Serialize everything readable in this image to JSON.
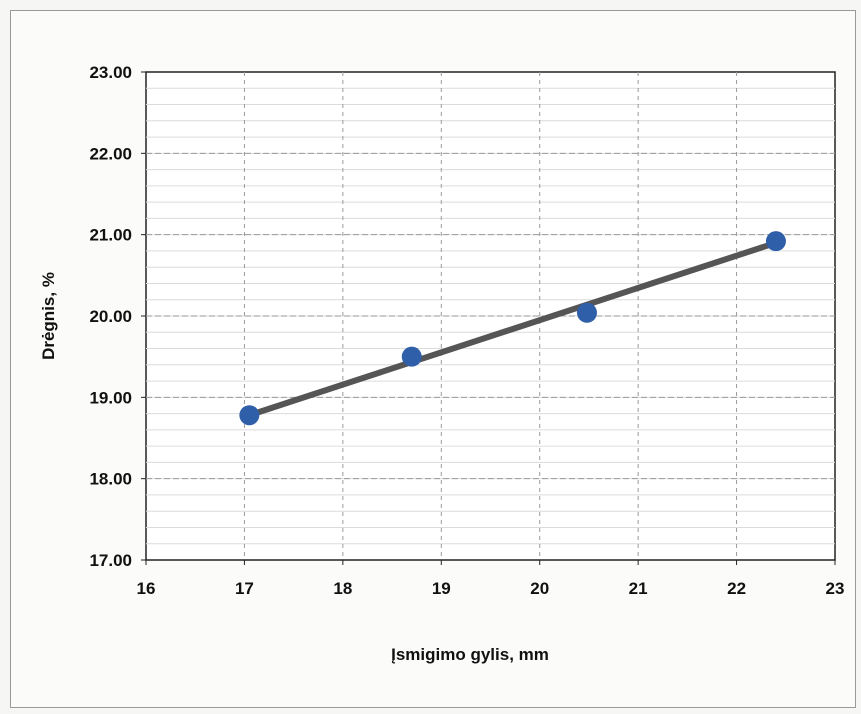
{
  "chart_data": {
    "type": "scatter",
    "title": "",
    "xlabel": "Įsmigimo gylis, mm",
    "ylabel": "Drėgnis, %",
    "xlim": [
      16,
      23
    ],
    "ylim": [
      17.0,
      23.0
    ],
    "x_ticks": [
      "16",
      "17",
      "18",
      "19",
      "20",
      "21",
      "22",
      "23"
    ],
    "y_ticks": [
      "17.00",
      "18.00",
      "19.00",
      "20.00",
      "21.00",
      "22.00",
      "23.00"
    ],
    "grid": true,
    "legend": "none",
    "series": [
      {
        "points": [
          {
            "x": 17.05,
            "y": 18.78
          },
          {
            "x": 18.7,
            "y": 19.5
          },
          {
            "x": 20.48,
            "y": 20.04
          },
          {
            "x": 22.4,
            "y": 20.92
          }
        ],
        "color": "#2f5fa8"
      }
    ],
    "trendline": {
      "from": {
        "x": 17.05,
        "y": 18.78
      },
      "to": {
        "x": 22.4,
        "y": 20.9
      },
      "color": "#555555"
    }
  }
}
